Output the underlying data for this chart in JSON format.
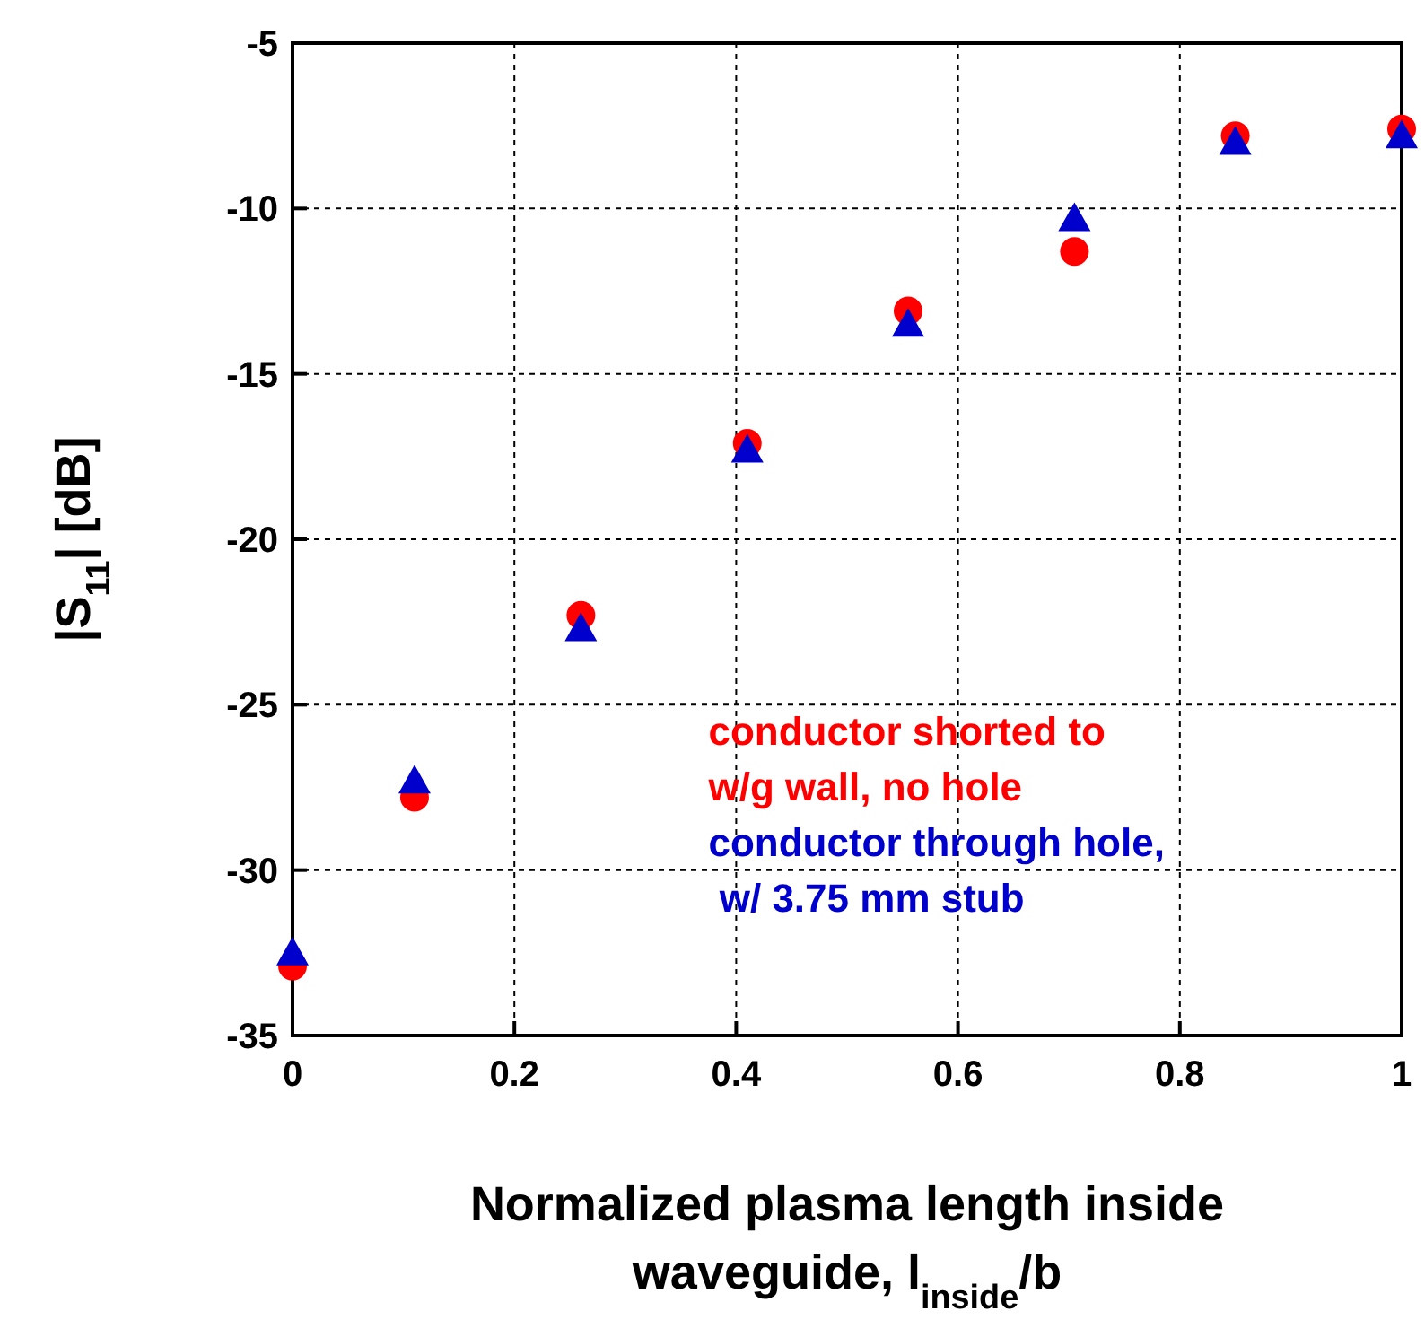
{
  "chart_data": {
    "type": "scatter",
    "xlabel": "Normalized plasma length inside\nwaveguide, l$_{inside}$/b",
    "ylabel": "|S$_{11}$| [dB]",
    "xlim": [
      0,
      1
    ],
    "ylim": [
      -35,
      -5
    ],
    "xticks": [
      0,
      0.2,
      0.4,
      0.6,
      0.8,
      1
    ],
    "yticks": [
      -35,
      -30,
      -25,
      -20,
      -15,
      -10,
      -5
    ],
    "grid": true,
    "legend": "bottom right",
    "series": [
      {
        "name": "conductor shorted to\nw/g wall, no hole",
        "color": "#ff0000",
        "marker": "circle",
        "x": [
          0,
          0.11,
          0.26,
          0.41,
          0.555,
          0.705,
          0.85,
          1
        ],
        "values": [
          -32.9,
          -27.8,
          -22.3,
          -17.1,
          -13.1,
          -11.3,
          -7.8,
          -7.6
        ]
      },
      {
        "name": "conductor through hole,\n w/ 3.75 mm stub",
        "color": "#0000cc",
        "marker": "triangle",
        "x": [
          0,
          0.11,
          0.26,
          0.41,
          0.555,
          0.705,
          0.85,
          1
        ],
        "values": [
          -32.5,
          -27.3,
          -22.7,
          -17.3,
          -13.5,
          -10.3,
          -8.0,
          -7.8
        ]
      }
    ]
  }
}
